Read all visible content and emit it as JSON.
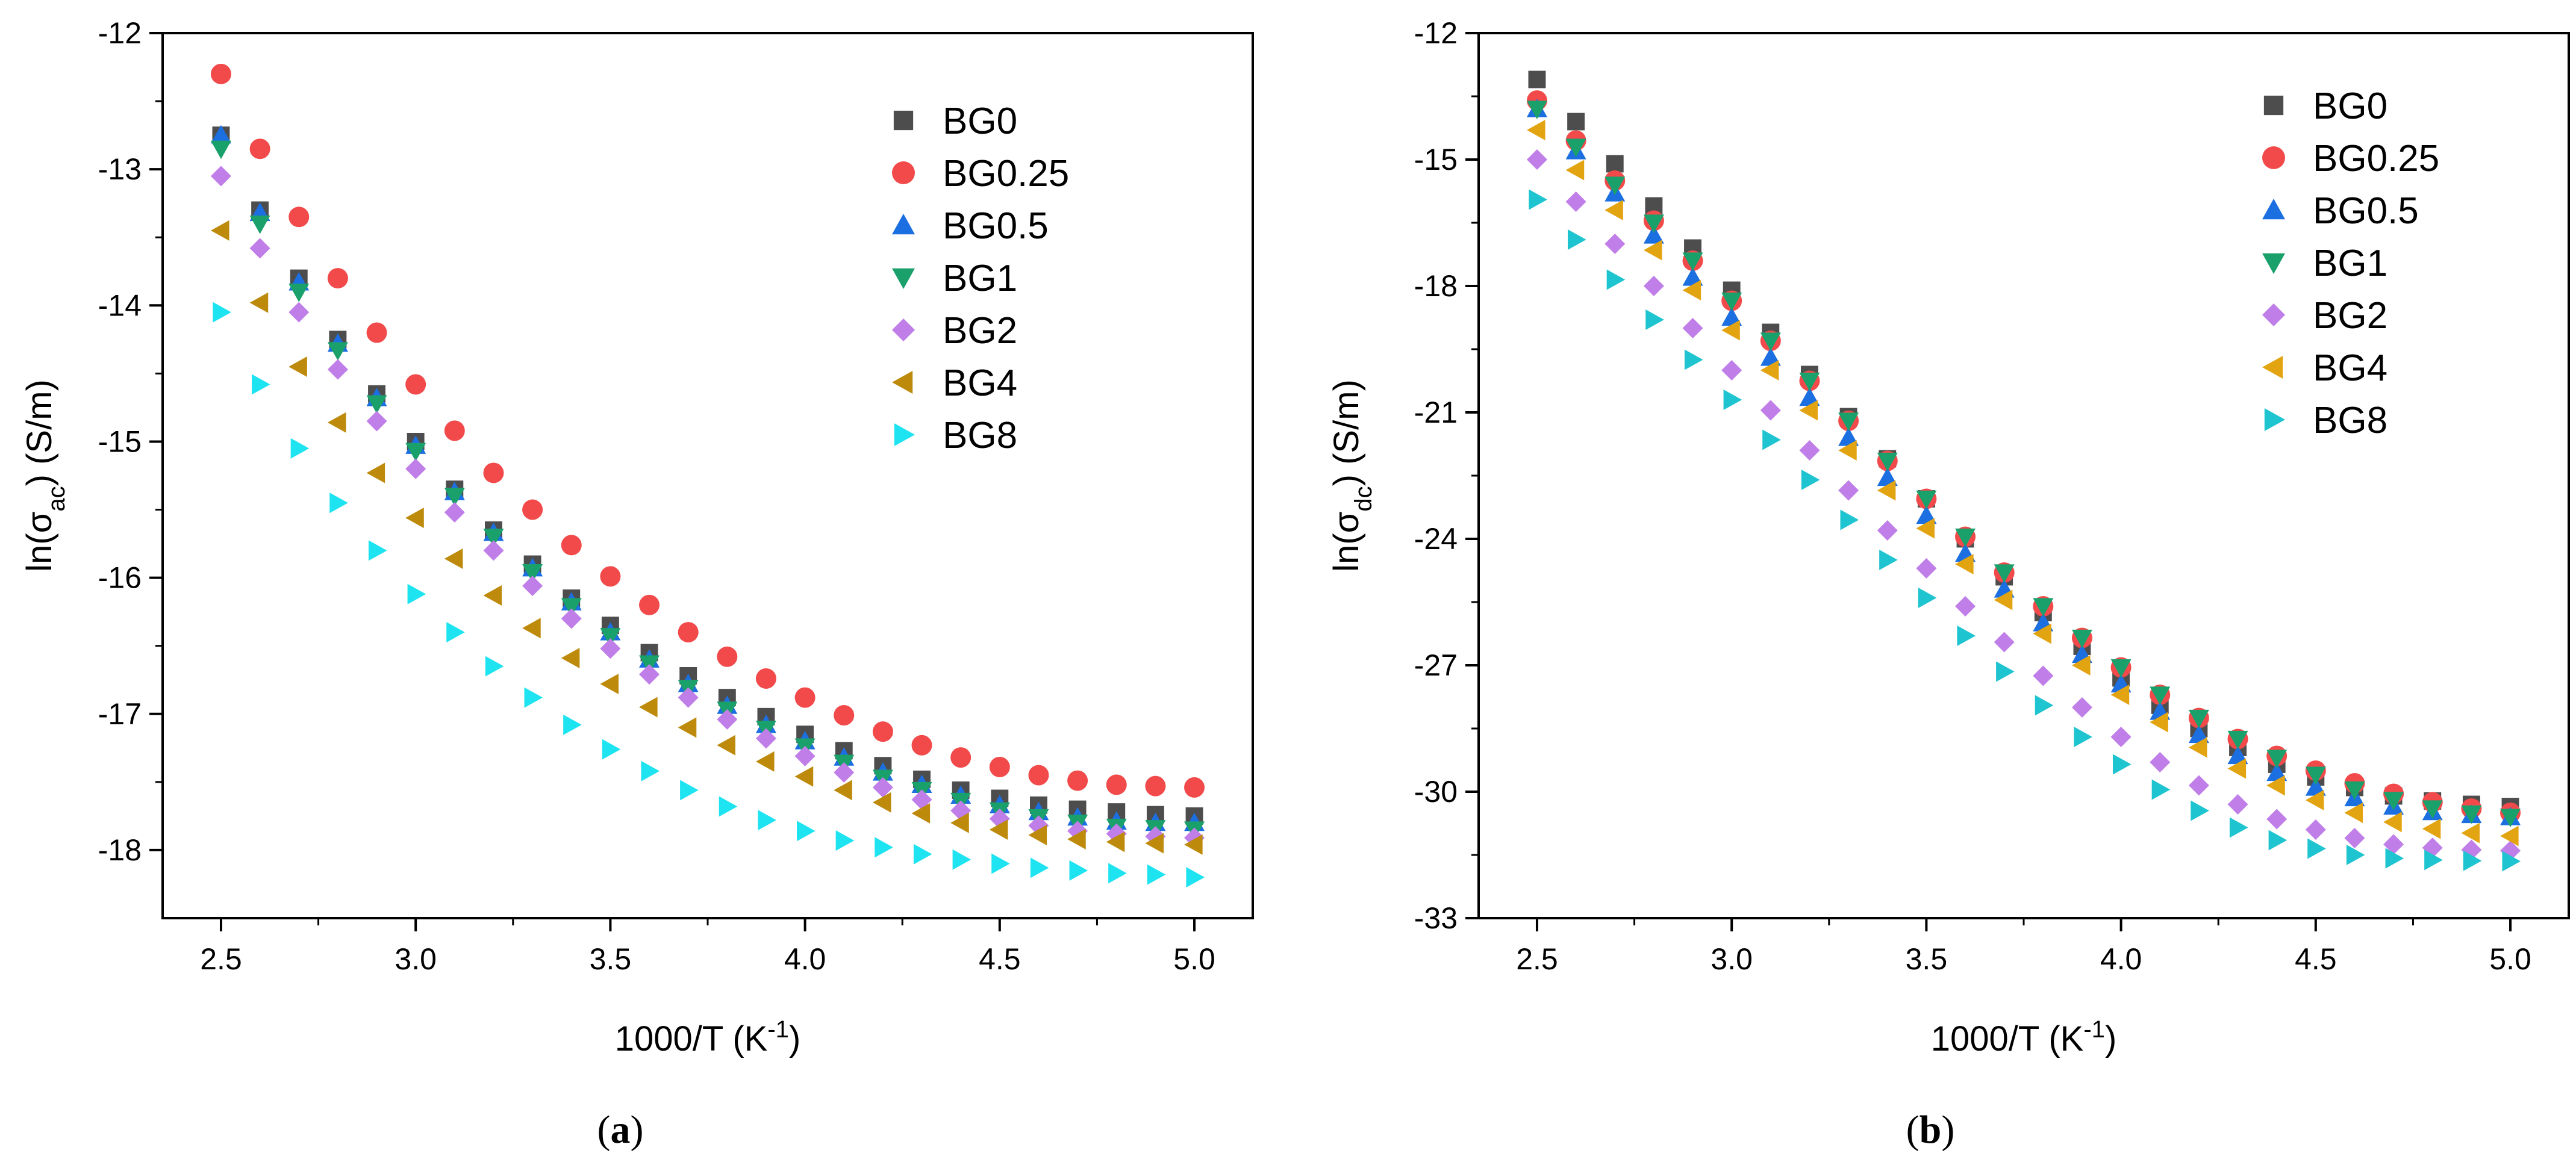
{
  "figure": {
    "panels": [
      {
        "id": "a",
        "caption": {
          "prefix": "(",
          "letter": "a",
          "suffix": ")"
        },
        "ytitle": {
          "main": "ln(σ",
          "sub": "ac",
          "end": ") (S/m)"
        },
        "xtitle": {
          "main": "1000/T (K",
          "sup": "-1",
          "end": ")"
        }
      },
      {
        "id": "b",
        "caption": {
          "prefix": "(",
          "letter": "b",
          "suffix": ")"
        },
        "ytitle": {
          "main": "ln(σ",
          "sub": "dc",
          "end": ") (S/m)"
        },
        "xtitle": {
          "main": "1000/T (K",
          "sup": "-1",
          "end": ")"
        }
      }
    ]
  },
  "chart_data": [
    {
      "type": "scatter",
      "panel": "a",
      "title": "",
      "xlabel": "1000/T (K-1)",
      "ylabel": "ln(σac) (S/m)",
      "xlim": [
        2.35,
        5.15
      ],
      "ylim": [
        -18.5,
        -12
      ],
      "xticks": [
        2.5,
        3.0,
        3.5,
        4.0,
        4.5,
        5.0
      ],
      "xtick_labels": [
        "2.5",
        "3.0",
        "3.5",
        "4.0",
        "4.5",
        "5.0"
      ],
      "yticks": [
        -18,
        -17,
        -16,
        -15,
        -14,
        -13,
        -12
      ],
      "ytick_labels": [
        "-18",
        "-17",
        "-16",
        "-15",
        "-14",
        "-13",
        "-12"
      ],
      "legend_position": "top-right",
      "grid": false,
      "series": [
        {
          "name": "BG0",
          "marker": "square",
          "color": "#4d4d4d",
          "x": [
            2.5,
            2.6,
            2.7,
            2.8,
            2.9,
            3.0,
            3.1,
            3.2,
            3.3,
            3.4,
            3.5,
            3.6,
            3.7,
            3.8,
            3.9,
            4.0,
            4.1,
            4.2,
            4.3,
            4.4,
            4.5,
            4.6,
            4.7,
            4.8,
            4.9,
            5.0
          ],
          "y": [
            -12.75,
            -13.3,
            -13.8,
            -14.25,
            -14.65,
            -15.0,
            -15.35,
            -15.65,
            -15.9,
            -16.15,
            -16.35,
            -16.55,
            -16.72,
            -16.88,
            -17.02,
            -17.15,
            -17.27,
            -17.38,
            -17.48,
            -17.56,
            -17.62,
            -17.67,
            -17.7,
            -17.72,
            -17.74,
            -17.75
          ]
        },
        {
          "name": "BG0.25",
          "marker": "circle",
          "color": "#f24a4a",
          "x": [
            2.5,
            2.6,
            2.7,
            2.8,
            2.9,
            3.0,
            3.1,
            3.2,
            3.3,
            3.4,
            3.5,
            3.6,
            3.7,
            3.8,
            3.9,
            4.0,
            4.1,
            4.2,
            4.3,
            4.4,
            4.5,
            4.6,
            4.7,
            4.8,
            4.9,
            5.0
          ],
          "y": [
            -12.3,
            -12.85,
            -13.35,
            -13.8,
            -14.2,
            -14.58,
            -14.92,
            -15.23,
            -15.5,
            -15.76,
            -15.99,
            -16.2,
            -16.4,
            -16.58,
            -16.74,
            -16.88,
            -17.01,
            -17.13,
            -17.23,
            -17.32,
            -17.39,
            -17.45,
            -17.49,
            -17.52,
            -17.53,
            -17.54
          ]
        },
        {
          "name": "BG0.5",
          "marker": "triangle-up",
          "color": "#1c6fe0",
          "x": [
            2.5,
            2.6,
            2.7,
            2.8,
            2.9,
            3.0,
            3.1,
            3.2,
            3.3,
            3.4,
            3.5,
            3.6,
            3.7,
            3.8,
            3.9,
            4.0,
            4.1,
            4.2,
            4.3,
            4.4,
            4.5,
            4.6,
            4.7,
            4.8,
            4.9,
            5.0
          ],
          "y": [
            -12.75,
            -13.32,
            -13.83,
            -14.28,
            -14.68,
            -15.03,
            -15.37,
            -15.67,
            -15.93,
            -16.18,
            -16.4,
            -16.6,
            -16.78,
            -16.94,
            -17.08,
            -17.2,
            -17.32,
            -17.43,
            -17.52,
            -17.6,
            -17.67,
            -17.72,
            -17.76,
            -17.79,
            -17.8,
            -17.8
          ]
        },
        {
          "name": "BG1",
          "marker": "triangle-down",
          "color": "#1aa06b",
          "x": [
            2.5,
            2.6,
            2.7,
            2.8,
            2.9,
            3.0,
            3.1,
            3.2,
            3.3,
            3.4,
            3.5,
            3.6,
            3.7,
            3.8,
            3.9,
            4.0,
            4.1,
            4.2,
            4.3,
            4.4,
            4.5,
            4.6,
            4.7,
            4.8,
            4.9,
            5.0
          ],
          "y": [
            -12.85,
            -13.4,
            -13.9,
            -14.33,
            -14.72,
            -15.07,
            -15.4,
            -15.7,
            -15.96,
            -16.21,
            -16.43,
            -16.63,
            -16.81,
            -16.97,
            -17.11,
            -17.24,
            -17.36,
            -17.47,
            -17.56,
            -17.64,
            -17.71,
            -17.76,
            -17.8,
            -17.83,
            -17.84,
            -17.85
          ]
        },
        {
          "name": "BG2",
          "marker": "diamond",
          "color": "#c07ee8",
          "x": [
            2.5,
            2.6,
            2.7,
            2.8,
            2.9,
            3.0,
            3.1,
            3.2,
            3.3,
            3.4,
            3.5,
            3.6,
            3.7,
            3.8,
            3.9,
            4.0,
            4.1,
            4.2,
            4.3,
            4.4,
            4.5,
            4.6,
            4.7,
            4.8,
            4.9,
            5.0
          ],
          "y": [
            -13.05,
            -13.58,
            -14.05,
            -14.47,
            -14.85,
            -15.2,
            -15.52,
            -15.8,
            -16.06,
            -16.3,
            -16.52,
            -16.71,
            -16.88,
            -17.04,
            -17.18,
            -17.31,
            -17.43,
            -17.54,
            -17.63,
            -17.71,
            -17.77,
            -17.82,
            -17.86,
            -17.88,
            -17.9,
            -17.91
          ]
        },
        {
          "name": "BG4",
          "marker": "triangle-left",
          "color": "#bd8a0c",
          "x": [
            2.5,
            2.6,
            2.7,
            2.8,
            2.9,
            3.0,
            3.1,
            3.2,
            3.3,
            3.4,
            3.5,
            3.6,
            3.7,
            3.8,
            3.9,
            4.0,
            4.1,
            4.2,
            4.3,
            4.4,
            4.5,
            4.6,
            4.7,
            4.8,
            4.9,
            5.0
          ],
          "y": [
            -13.45,
            -13.98,
            -14.45,
            -14.86,
            -15.23,
            -15.56,
            -15.86,
            -16.13,
            -16.37,
            -16.59,
            -16.78,
            -16.95,
            -17.1,
            -17.23,
            -17.35,
            -17.46,
            -17.56,
            -17.65,
            -17.73,
            -17.8,
            -17.85,
            -17.89,
            -17.92,
            -17.94,
            -17.95,
            -17.96
          ]
        },
        {
          "name": "BG8",
          "marker": "triangle-right",
          "color": "#1ee3f0",
          "x": [
            2.5,
            2.6,
            2.7,
            2.8,
            2.9,
            3.0,
            3.1,
            3.2,
            3.3,
            3.4,
            3.5,
            3.6,
            3.7,
            3.8,
            3.9,
            4.0,
            4.1,
            4.2,
            4.3,
            4.4,
            4.5,
            4.6,
            4.7,
            4.8,
            4.9,
            5.0
          ],
          "y": [
            -14.05,
            -14.58,
            -15.05,
            -15.45,
            -15.8,
            -16.12,
            -16.4,
            -16.65,
            -16.88,
            -17.08,
            -17.26,
            -17.42,
            -17.56,
            -17.68,
            -17.78,
            -17.86,
            -17.93,
            -17.98,
            -18.03,
            -18.07,
            -18.1,
            -18.13,
            -18.15,
            -18.17,
            -18.18,
            -18.2
          ]
        }
      ]
    },
    {
      "type": "scatter",
      "panel": "b",
      "title": "",
      "xlabel": "1000/T (K-1)",
      "ylabel": "ln(σdc) (S/m)",
      "xlim": [
        2.35,
        5.15
      ],
      "ylim": [
        -33,
        -12
      ],
      "xticks": [
        2.5,
        3.0,
        3.5,
        4.0,
        4.5,
        5.0
      ],
      "xtick_labels": [
        "2.5",
        "3.0",
        "3.5",
        "4.0",
        "4.5",
        "5.0"
      ],
      "yticks": [
        -33,
        -30,
        -27,
        -24,
        -21,
        -18,
        -15,
        -12
      ],
      "ytick_labels": [
        "-33",
        "-30",
        "-27",
        "-24",
        "-21",
        "-18",
        "-15",
        "-12"
      ],
      "legend_position": "top-right",
      "grid": false,
      "series": [
        {
          "name": "BG0",
          "marker": "square",
          "color": "#4d4d4d",
          "x": [
            2.5,
            2.6,
            2.7,
            2.8,
            2.9,
            3.0,
            3.1,
            3.2,
            3.3,
            3.4,
            3.5,
            3.6,
            3.7,
            3.8,
            3.9,
            4.0,
            4.1,
            4.2,
            4.3,
            4.4,
            4.5,
            4.6,
            4.7,
            4.8,
            4.9,
            5.0
          ],
          "y": [
            -13.1,
            -14.1,
            -15.1,
            -16.1,
            -17.1,
            -18.1,
            -19.1,
            -20.1,
            -21.1,
            -22.1,
            -23.05,
            -24.0,
            -24.9,
            -25.75,
            -26.55,
            -27.3,
            -27.95,
            -28.5,
            -28.95,
            -29.35,
            -29.65,
            -29.9,
            -30.1,
            -30.22,
            -30.3,
            -30.35
          ]
        },
        {
          "name": "BG0.25",
          "marker": "circle",
          "color": "#f24a4a",
          "x": [
            2.5,
            2.6,
            2.7,
            2.8,
            2.9,
            3.0,
            3.1,
            3.2,
            3.3,
            3.4,
            3.5,
            3.6,
            3.7,
            3.8,
            3.9,
            4.0,
            4.1,
            4.2,
            4.3,
            4.4,
            4.5,
            4.6,
            4.7,
            4.8,
            4.9,
            5.0
          ],
          "y": [
            -13.6,
            -14.55,
            -15.5,
            -16.45,
            -17.4,
            -18.35,
            -19.3,
            -20.25,
            -21.2,
            -22.15,
            -23.05,
            -23.95,
            -24.8,
            -25.6,
            -26.35,
            -27.05,
            -27.7,
            -28.25,
            -28.75,
            -29.15,
            -29.5,
            -29.8,
            -30.05,
            -30.25,
            -30.4,
            -30.5
          ]
        },
        {
          "name": "BG0.5",
          "marker": "triangle-up",
          "color": "#1c6fe0",
          "x": [
            2.5,
            2.6,
            2.7,
            2.8,
            2.9,
            3.0,
            3.1,
            3.2,
            3.3,
            3.4,
            3.5,
            3.6,
            3.7,
            3.8,
            3.9,
            4.0,
            4.1,
            4.2,
            4.3,
            4.4,
            4.5,
            4.6,
            4.7,
            4.8,
            4.9,
            5.0
          ],
          "y": [
            -13.8,
            -14.8,
            -15.8,
            -16.8,
            -17.8,
            -18.75,
            -19.7,
            -20.65,
            -21.6,
            -22.55,
            -23.45,
            -24.35,
            -25.2,
            -26.0,
            -26.75,
            -27.45,
            -28.1,
            -28.65,
            -29.15,
            -29.55,
            -29.9,
            -30.15,
            -30.35,
            -30.48,
            -30.55,
            -30.6
          ]
        },
        {
          "name": "BG1",
          "marker": "triangle-down",
          "color": "#1aa06b",
          "x": [
            2.5,
            2.6,
            2.7,
            2.8,
            2.9,
            3.0,
            3.1,
            3.2,
            3.3,
            3.4,
            3.5,
            3.6,
            3.7,
            3.8,
            3.9,
            4.0,
            4.1,
            4.2,
            4.3,
            4.4,
            4.5,
            4.6,
            4.7,
            4.8,
            4.9,
            5.0
          ],
          "y": [
            -13.8,
            -14.7,
            -15.6,
            -16.5,
            -17.4,
            -18.35,
            -19.3,
            -20.25,
            -21.2,
            -22.15,
            -23.05,
            -23.95,
            -24.8,
            -25.6,
            -26.35,
            -27.05,
            -27.7,
            -28.25,
            -28.75,
            -29.2,
            -29.6,
            -29.95,
            -30.2,
            -30.4,
            -30.52,
            -30.6
          ]
        },
        {
          "name": "BG2",
          "marker": "diamond",
          "color": "#c07ee8",
          "x": [
            2.5,
            2.6,
            2.7,
            2.8,
            2.9,
            3.0,
            3.1,
            3.2,
            3.3,
            3.4,
            3.5,
            3.6,
            3.7,
            3.8,
            3.9,
            4.0,
            4.1,
            4.2,
            4.3,
            4.4,
            4.5,
            4.6,
            4.7,
            4.8,
            4.9,
            5.0
          ],
          "y": [
            -15.0,
            -16.0,
            -17.0,
            -18.0,
            -19.0,
            -20.0,
            -20.95,
            -21.9,
            -22.85,
            -23.8,
            -24.7,
            -25.6,
            -26.45,
            -27.25,
            -28.0,
            -28.7,
            -29.3,
            -29.85,
            -30.3,
            -30.65,
            -30.9,
            -31.1,
            -31.25,
            -31.33,
            -31.38,
            -31.4
          ]
        },
        {
          "name": "BG4",
          "marker": "triangle-left",
          "color": "#e3a412",
          "x": [
            2.5,
            2.6,
            2.7,
            2.8,
            2.9,
            3.0,
            3.1,
            3.2,
            3.3,
            3.4,
            3.5,
            3.6,
            3.7,
            3.8,
            3.9,
            4.0,
            4.1,
            4.2,
            4.3,
            4.4,
            4.5,
            4.6,
            4.7,
            4.8,
            4.9,
            5.0
          ],
          "y": [
            -14.3,
            -15.25,
            -16.2,
            -17.15,
            -18.1,
            -19.05,
            -20.0,
            -20.95,
            -21.9,
            -22.85,
            -23.75,
            -24.6,
            -25.45,
            -26.25,
            -27.0,
            -27.7,
            -28.35,
            -28.95,
            -29.45,
            -29.85,
            -30.2,
            -30.5,
            -30.72,
            -30.88,
            -30.98,
            -31.05
          ]
        },
        {
          "name": "BG8",
          "marker": "triangle-right",
          "color": "#1ec4cf",
          "x": [
            2.5,
            2.6,
            2.7,
            2.8,
            2.9,
            3.0,
            3.1,
            3.2,
            3.3,
            3.4,
            3.5,
            3.6,
            3.7,
            3.8,
            3.9,
            4.0,
            4.1,
            4.2,
            4.3,
            4.4,
            4.5,
            4.6,
            4.7,
            4.8,
            4.9,
            5.0
          ],
          "y": [
            -15.95,
            -16.9,
            -17.85,
            -18.8,
            -19.75,
            -20.7,
            -21.65,
            -22.6,
            -23.55,
            -24.5,
            -25.4,
            -26.3,
            -27.15,
            -27.95,
            -28.7,
            -29.35,
            -29.95,
            -30.45,
            -30.85,
            -31.15,
            -31.35,
            -31.5,
            -31.58,
            -31.62,
            -31.64,
            -31.65
          ]
        }
      ]
    }
  ]
}
